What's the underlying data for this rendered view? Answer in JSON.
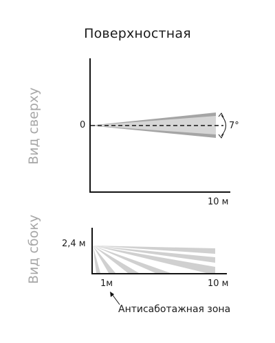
{
  "title": "Поверхностная",
  "top_view": {
    "side_label": "Вид сверху",
    "origin_label": "0",
    "angle_label": "7°",
    "distance_label": "10 м"
  },
  "side_view": {
    "side_label": "Вид сбоку",
    "height_label": "2,4 м",
    "near_label": "1м",
    "far_label": "10 м",
    "zone_caption": "Антисаботажная зона"
  },
  "colors": {
    "axis": "#111111",
    "beam": "#c8c8c8",
    "beam_center": "#d9d9d9",
    "muted_text": "#a7a7a7"
  }
}
